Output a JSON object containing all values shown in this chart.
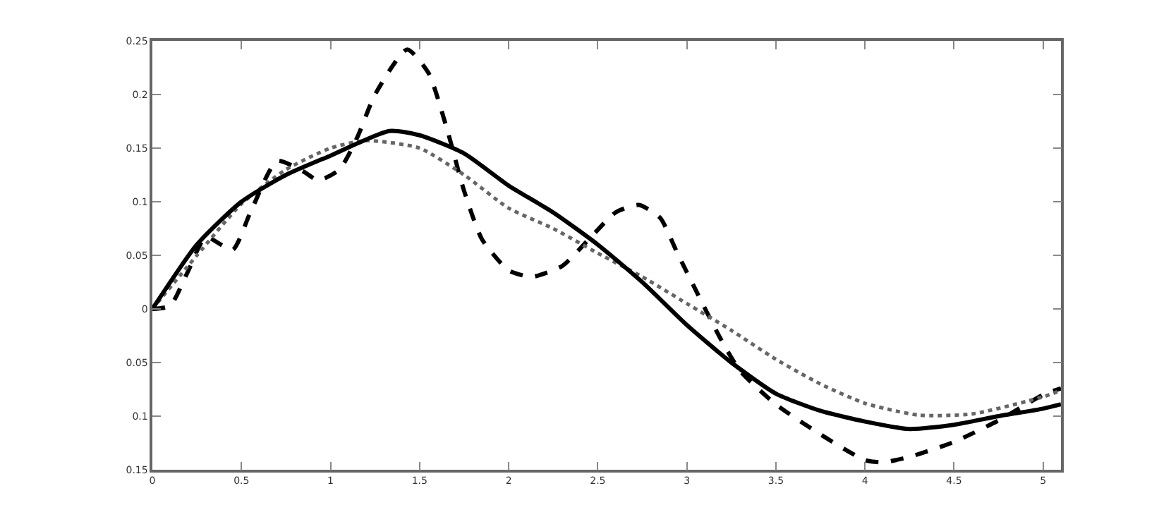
{
  "chart_data": {
    "type": "line",
    "xlim": [
      0,
      5.1
    ],
    "ylim": [
      -0.15,
      0.25
    ],
    "xticks": [
      0,
      0.5,
      1,
      1.5,
      2,
      2.5,
      3,
      3.5,
      4,
      4.5,
      5
    ],
    "yticks": [
      {
        "value": -0.15,
        "label": "0.15"
      },
      {
        "value": -0.1,
        "label": "0.1"
      },
      {
        "value": -0.05,
        "label": "0.05"
      },
      0,
      0.05,
      0.1,
      0.15,
      0.2,
      0.25
    ],
    "marker": "none",
    "series": [
      {
        "color": "#000000",
        "line_style": "dashed",
        "x": [
          0,
          0.1,
          0.2,
          0.3,
          0.45,
          0.55,
          0.7,
          0.85,
          0.93,
          1.05,
          1.15,
          1.25,
          1.43,
          1.55,
          1.65,
          1.75,
          1.85,
          2,
          2.13,
          2.3,
          2.45,
          2.6,
          2.73,
          2.85,
          2.95,
          3.19,
          3.3,
          3.5,
          3.75,
          4,
          4.1,
          4.25,
          4.5,
          4.75,
          5,
          5.1
        ],
        "values": [
          0,
          0.003,
          0.035,
          0.067,
          0.055,
          0.09,
          0.138,
          0.128,
          0.12,
          0.13,
          0.16,
          0.2,
          0.242,
          0.22,
          0.17,
          0.11,
          0.065,
          0.036,
          0.03,
          0.04,
          0.065,
          0.09,
          0.097,
          0.085,
          0.051,
          -0.028,
          -0.058,
          -0.089,
          -0.117,
          -0.141,
          -0.143,
          -0.138,
          -0.124,
          -0.104,
          -0.08,
          -0.074
        ]
      },
      {
        "color": "#666666",
        "line_style": "dotted",
        "x": [
          0,
          0.25,
          0.5,
          0.75,
          1,
          1.2,
          1.5,
          1.75,
          2,
          2.25,
          2.5,
          2.75,
          3,
          3.25,
          3.5,
          3.75,
          4,
          4.3,
          4.6,
          5,
          5.1
        ],
        "values": [
          0,
          0.05,
          0.098,
          0.13,
          0.15,
          0.157,
          0.15,
          0.125,
          0.094,
          0.075,
          0.052,
          0.03,
          0.005,
          -0.02,
          -0.047,
          -0.07,
          -0.088,
          -0.099,
          -0.098,
          -0.082,
          -0.076
        ]
      },
      {
        "color": "#000000",
        "line_style": "solid",
        "x": [
          0,
          0.25,
          0.5,
          0.75,
          1,
          1.33,
          1.5,
          1.75,
          2,
          2.25,
          2.5,
          2.75,
          3,
          3.25,
          3.5,
          3.75,
          4,
          4.25,
          4.5,
          4.75,
          5,
          5.1
        ],
        "values": [
          0,
          0.06,
          0.1,
          0.125,
          0.143,
          0.166,
          0.162,
          0.145,
          0.115,
          0.09,
          0.06,
          0.025,
          -0.015,
          -0.05,
          -0.079,
          -0.095,
          -0.105,
          -0.112,
          -0.108,
          -0.1,
          -0.093,
          -0.089
        ]
      }
    ]
  }
}
